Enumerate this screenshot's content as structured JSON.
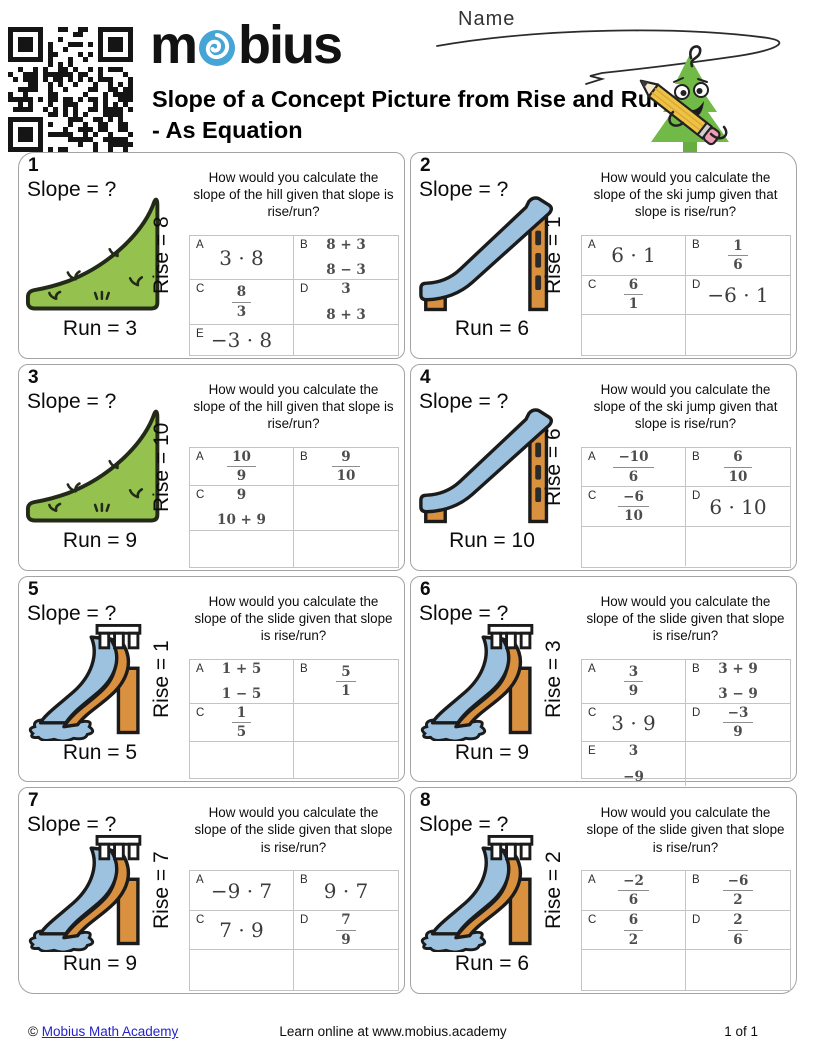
{
  "header": {
    "brand": "mobius",
    "title": "Slope of a Concept Picture from Rise and Run - As Equation",
    "name_label": "Name"
  },
  "footer": {
    "copyright_prefix": "© ",
    "copyright_link": "Mobius Math Academy",
    "center_text": "Learn online at www.mobius.academy",
    "page_indicator": "1 of 1"
  },
  "colors": {
    "logo_blue": "#45a5d6",
    "hill_green": "#95c14f",
    "hill_outline": "#232b18",
    "slide_blue": "#9dc2e0",
    "wood_orange": "#d99140",
    "dark_outline": "#1b1b1b",
    "tree_green": "#72ba48",
    "trunk_green": "#68ad3f",
    "pencil_yellow": "#f0c243",
    "eraser_pink": "#f09cb6",
    "link_blue": "#2323cc"
  },
  "problems": [
    {
      "number": "1",
      "slope_label": "Slope = ?",
      "illustration": "hill",
      "rise_label": "Rise = 8",
      "run_label": "Run = 3",
      "question": "How would you calculate the slope of the hill given that slope is rise/run?",
      "choices": [
        {
          "letter": "A",
          "type": "expr",
          "value": "3 · 8"
        },
        {
          "letter": "B",
          "type": "stack",
          "num": "8 + 3",
          "den": "8 − 3"
        },
        {
          "letter": "C",
          "type": "frac",
          "num": "8",
          "den": "3"
        },
        {
          "letter": "D",
          "type": "stack",
          "num": "3",
          "den": "8 + 3"
        },
        {
          "letter": "E",
          "type": "expr",
          "value": "−3 · 8"
        }
      ]
    },
    {
      "number": "2",
      "slope_label": "Slope = ?",
      "illustration": "ski-jump",
      "rise_label": "Rise = 1",
      "run_label": "Run = 6",
      "question": "How would you calculate the slope of the ski jump given that slope is rise/run?",
      "choices": [
        {
          "letter": "A",
          "type": "expr",
          "value": "6 · 1"
        },
        {
          "letter": "B",
          "type": "frac",
          "num": "1",
          "den": "6"
        },
        {
          "letter": "C",
          "type": "frac",
          "num": "6",
          "den": "1"
        },
        {
          "letter": "D",
          "type": "expr",
          "value": "−6 · 1"
        }
      ]
    },
    {
      "number": "3",
      "slope_label": "Slope = ?",
      "illustration": "hill",
      "rise_label": "Rise = 10",
      "run_label": "Run = 9",
      "question": "How would you calculate the slope of the hill given that slope is rise/run?",
      "choices": [
        {
          "letter": "A",
          "type": "frac",
          "num": "10",
          "den": "9"
        },
        {
          "letter": "B",
          "type": "frac",
          "num": "9",
          "den": "10"
        },
        {
          "letter": "C",
          "type": "stack",
          "num": "9",
          "den": "10 + 9"
        }
      ]
    },
    {
      "number": "4",
      "slope_label": "Slope = ?",
      "illustration": "ski-jump",
      "rise_label": "Rise = 6",
      "run_label": "Run = 10",
      "question": "How would you calculate the slope of the ski jump given that slope is rise/run?",
      "choices": [
        {
          "letter": "A",
          "type": "frac",
          "num": "−10",
          "den": "6"
        },
        {
          "letter": "B",
          "type": "frac",
          "num": "6",
          "den": "10"
        },
        {
          "letter": "C",
          "type": "frac",
          "num": "−6",
          "den": "10"
        },
        {
          "letter": "D",
          "type": "expr",
          "value": "6 · 10"
        }
      ]
    },
    {
      "number": "5",
      "slope_label": "Slope = ?",
      "illustration": "slide",
      "rise_label": "Rise = 1",
      "run_label": "Run = 5",
      "question": "How would you calculate the slope of the slide given that slope is rise/run?",
      "choices": [
        {
          "letter": "A",
          "type": "stack",
          "num": "1 + 5",
          "den": "1 − 5"
        },
        {
          "letter": "B",
          "type": "frac",
          "num": "5",
          "den": "1"
        },
        {
          "letter": "C",
          "type": "frac",
          "num": "1",
          "den": "5"
        }
      ]
    },
    {
      "number": "6",
      "slope_label": "Slope = ?",
      "illustration": "slide",
      "rise_label": "Rise = 3",
      "run_label": "Run = 9",
      "question": "How would you calculate the slope of the slide given that slope is rise/run?",
      "choices": [
        {
          "letter": "A",
          "type": "frac",
          "num": "3",
          "den": "9"
        },
        {
          "letter": "B",
          "type": "stack",
          "num": "3 + 9",
          "den": "3 − 9"
        },
        {
          "letter": "C",
          "type": "expr",
          "value": "3 · 9"
        },
        {
          "letter": "D",
          "type": "frac",
          "num": "−3",
          "den": "9"
        },
        {
          "letter": "E",
          "type": "stack",
          "num": "3",
          "den": "−9"
        }
      ]
    },
    {
      "number": "7",
      "slope_label": "Slope = ?",
      "illustration": "slide",
      "rise_label": "Rise = 7",
      "run_label": "Run = 9",
      "question": "How would you calculate the slope of the slide given that slope is rise/run?",
      "choices": [
        {
          "letter": "A",
          "type": "expr",
          "value": "−9 · 7"
        },
        {
          "letter": "B",
          "type": "expr",
          "value": "9 · 7"
        },
        {
          "letter": "C",
          "type": "expr",
          "value": "7 · 9"
        },
        {
          "letter": "D",
          "type": "frac",
          "num": "7",
          "den": "9"
        }
      ]
    },
    {
      "number": "8",
      "slope_label": "Slope = ?",
      "illustration": "slide",
      "rise_label": "Rise = 2",
      "run_label": "Run = 6",
      "question": "How would you calculate the slope of the slide given that slope is rise/run?",
      "choices": [
        {
          "letter": "A",
          "type": "frac",
          "num": "−2",
          "den": "6"
        },
        {
          "letter": "B",
          "type": "frac",
          "num": "−6",
          "den": "2"
        },
        {
          "letter": "C",
          "type": "frac",
          "num": "6",
          "den": "2"
        },
        {
          "letter": "D",
          "type": "frac",
          "num": "2",
          "den": "6"
        }
      ]
    }
  ]
}
